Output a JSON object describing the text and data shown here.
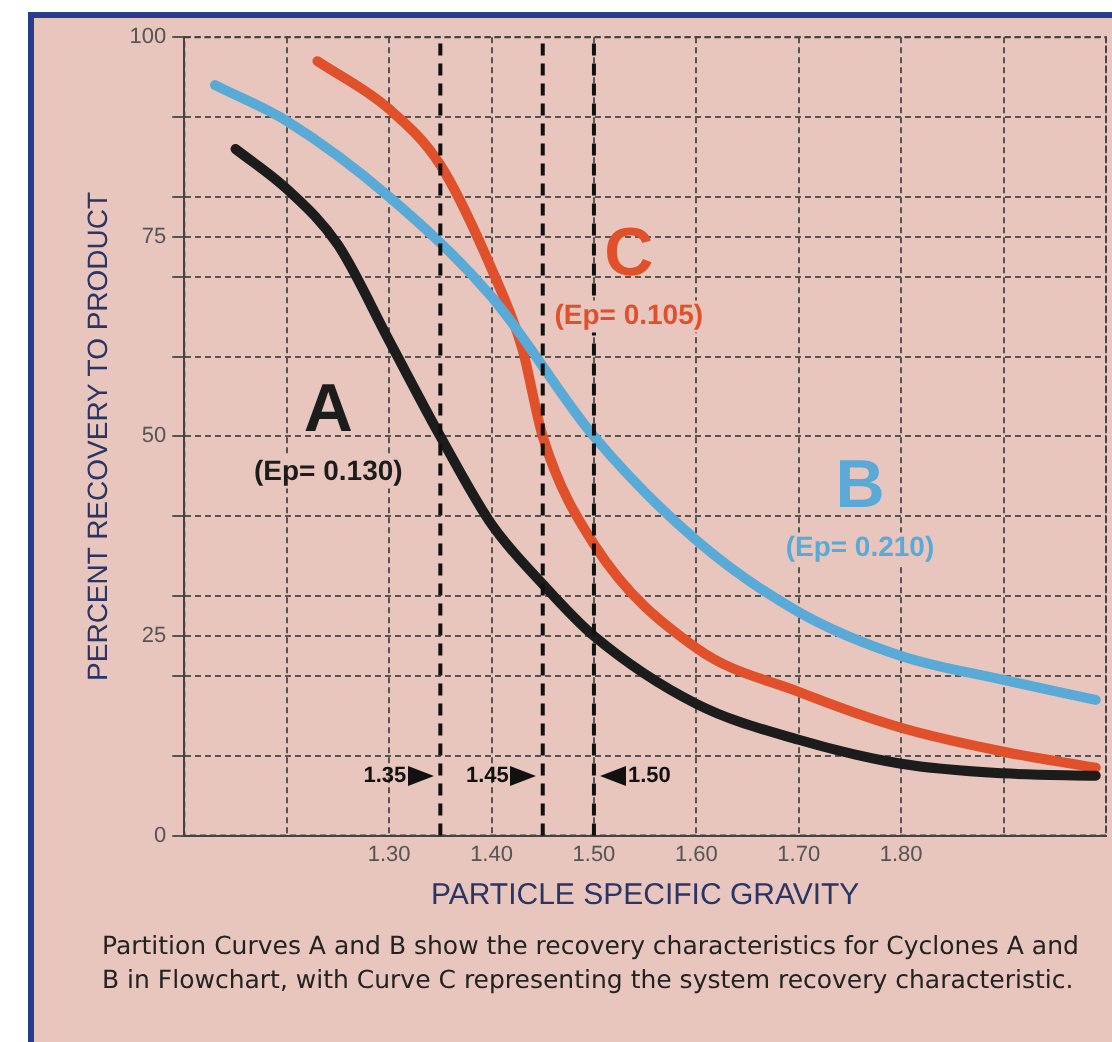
{
  "chart_data": {
    "type": "line",
    "xlabel": "PARTICLE SPECIFIC GRAVITY",
    "ylabel": "PERCENT RECOVERY TO PRODUCT",
    "xlim": [
      1.1,
      2.0
    ],
    "xticks": [
      {
        "value": 1.2,
        "label": null
      },
      {
        "value": 1.3,
        "label": "1.30"
      },
      {
        "value": 1.4,
        "label": "1.40"
      },
      {
        "value": 1.5,
        "label": "1.50"
      },
      {
        "value": 1.6,
        "label": "1.60"
      },
      {
        "value": 1.7,
        "label": "1.70"
      },
      {
        "value": 1.8,
        "label": "1.80"
      },
      {
        "value": 1.9,
        "label": null
      },
      {
        "value": 2.0,
        "label": null
      }
    ],
    "ylim": [
      0,
      100
    ],
    "yticks": [
      0,
      {
        "value": 10,
        "label": null
      },
      {
        "value": 20,
        "label": null
      },
      25,
      {
        "value": 30,
        "label": null
      },
      {
        "value": 40,
        "label": null
      },
      50,
      {
        "value": 60,
        "label": null
      },
      {
        "value": 70,
        "label": null
      },
      75,
      {
        "value": 80,
        "label": null
      },
      {
        "value": 90,
        "label": null
      },
      100
    ],
    "grid": true,
    "legend": false,
    "marker": "none",
    "line_style": "solid",
    "series": [
      {
        "name": "A",
        "color": "#1c1c1c",
        "x": [
          1.15,
          1.2,
          1.25,
          1.3,
          1.35,
          1.4,
          1.45,
          1.5,
          1.6,
          1.7,
          1.8,
          1.9,
          1.99
        ],
        "values": [
          86,
          81,
          74,
          62,
          50,
          39,
          31.5,
          25,
          16.5,
          12,
          9,
          7.8,
          7.5
        ]
      },
      {
        "name": "B",
        "color": "#5aaad8",
        "x": [
          1.13,
          1.2,
          1.3,
          1.4,
          1.5,
          1.6,
          1.7,
          1.8,
          1.9,
          1.99
        ],
        "values": [
          94,
          89.5,
          80,
          67.5,
          50,
          37,
          28,
          22.5,
          19.5,
          17
        ]
      },
      {
        "name": "C",
        "color": "#e0502a",
        "x": [
          1.23,
          1.3,
          1.35,
          1.4,
          1.43,
          1.45,
          1.5,
          1.6,
          1.7,
          1.8,
          1.9,
          1.99
        ],
        "values": [
          97,
          91,
          84,
          71,
          61,
          50,
          36.5,
          23.5,
          18,
          13.5,
          10.5,
          8.5
        ]
      }
    ],
    "ref_lines": [
      {
        "axis": "x",
        "value": 1.35,
        "label": "1.35"
      },
      {
        "axis": "x",
        "value": 1.45,
        "label": "1.45"
      },
      {
        "axis": "x",
        "value": 1.5,
        "label": "1.50"
      }
    ],
    "annotations": [
      "(Ep= 0.130)",
      "(Ep= 0.210)",
      "(Ep= 0.105)",
      "Partition Curves A and B show the recovery characteristics for Cyclones A and B in Flowchart, with Curve C representing the system recovery characteristic."
    ]
  }
}
